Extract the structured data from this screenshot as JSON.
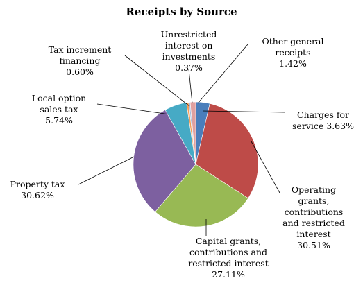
{
  "chart_data": {
    "type": "pie",
    "title": "Receipts by Source",
    "categories": [
      "Charges for service",
      "Operating grants, contributions and restricted interest",
      "Capital grants, contributions and restricted interest",
      "Property tax",
      "Local option sales tax",
      "Tax increment financing",
      "Unrestricted interest on investments",
      "Other general receipts"
    ],
    "values": [
      3.63,
      30.51,
      27.11,
      30.62,
      5.74,
      0.6,
      0.37,
      1.42
    ],
    "value_labels": [
      "3.63%",
      "30.51%",
      "27.11%",
      "30.62%",
      "5.74%",
      "0.60%",
      "0.37%",
      "1.42%"
    ],
    "colors": [
      "#4a7ebb",
      "#be4b48",
      "#98b954",
      "#7d60a0",
      "#46aac5",
      "#f59d56",
      "#a5b9dc",
      "#e0a0a0"
    ]
  }
}
